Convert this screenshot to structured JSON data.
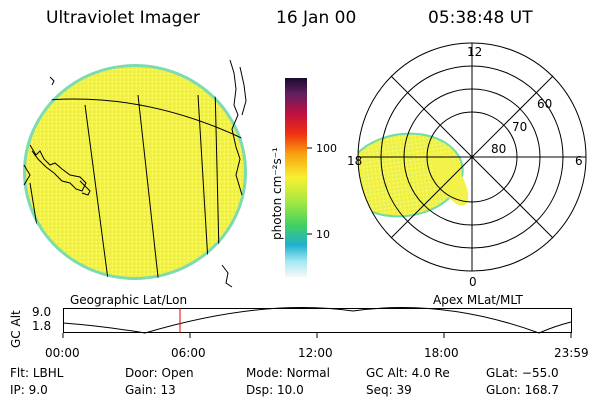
{
  "header": {
    "instrument": "Ultraviolet Imager",
    "date": "16 Jan 00",
    "time": "05:38:48 UT"
  },
  "colorbar": {
    "unit_label": "photon cm⁻²s⁻¹",
    "ticks": [
      "100",
      "10"
    ]
  },
  "geo_panel": {
    "caption": "Geographic Lat/Lon"
  },
  "polar_panel": {
    "caption": "Apex MLat/MLT",
    "mlt_labels": [
      "12",
      "18",
      "6",
      "0"
    ],
    "lat_labels": [
      "60",
      "70",
      "80"
    ]
  },
  "altitude_plot": {
    "ylabel": "GC Alt",
    "yticks": [
      "9.0",
      "1.8"
    ],
    "xticks": [
      "00:00",
      "06:00",
      "12:00",
      "18:00",
      "23:59"
    ],
    "current_time_marker": "05:38:48"
  },
  "status": {
    "flt_label": "Flt:",
    "flt_value": "LBHL",
    "ip_label": "IP:",
    "ip_value": "9.0",
    "door_label": "Door:",
    "door_value": "Open",
    "gain_label": "Gain:",
    "gain_value": "13",
    "mode_label": "Mode:",
    "mode_value": "Normal",
    "dsp_label": "Dsp:",
    "dsp_value": "10.0",
    "gcalt_label": "GC Alt:",
    "gcalt_value": "4.0 Re",
    "seq_label": "Seq:",
    "seq_value": "39",
    "glat_label": "GLat:",
    "glat_value": "−55.0",
    "glon_label": "GLon:",
    "glon_value": "168.7"
  }
}
